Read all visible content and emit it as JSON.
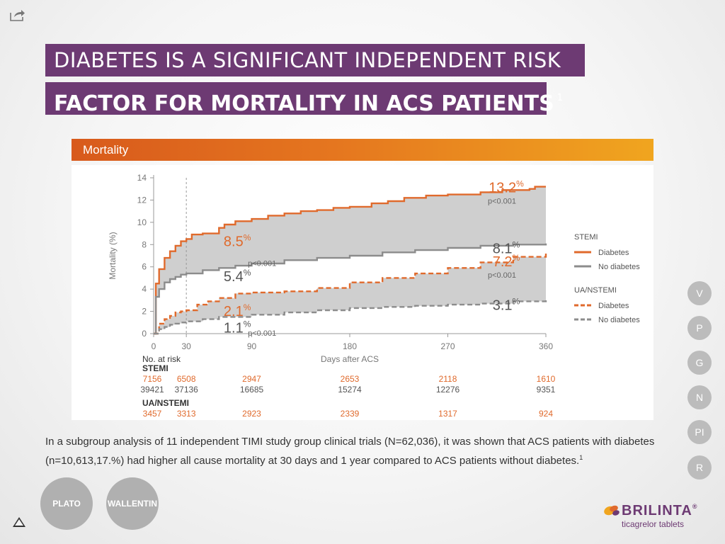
{
  "title_line1": "DIABETES IS A SIGNIFICANT INDEPENDENT RISK",
  "title_line2": "FACTOR FOR MORTALITY IN ACS PATIENTS",
  "title_ref": "1",
  "banner": "Mortality",
  "paragraph": "In a subgroup analysis of 11 independent TIMI study group clinical trials (N=62,036), it was shown that ACS patients with diabetes (n=10,613,17.%) had higher all cause mortality at 30 days and 1 year compared to ACS patients without diabetes.",
  "paragraph_ref": "1",
  "nav": {
    "side_buttons": [
      "V",
      "P",
      "G",
      "N",
      "PI",
      "R"
    ],
    "bottom_buttons": [
      "PLATO",
      "WALLENTIN"
    ]
  },
  "logo": {
    "name": "BRILINTA",
    "trademark": "®",
    "sub": "ticagrelor tablets"
  },
  "colors": {
    "diabetes": "#e06a2c",
    "no_diabetes": "#8c8c8c",
    "band": "#cfcfcf",
    "title_bg": "#6d3a73"
  },
  "chart_data": {
    "type": "line",
    "xlabel": "Days after ACS",
    "ylabel": "Mortality (%)",
    "xlim": [
      0,
      360
    ],
    "ylim": [
      0,
      14
    ],
    "xticks": [
      0,
      30,
      90,
      180,
      270,
      360
    ],
    "yticks": [
      0,
      2,
      4,
      6,
      8,
      10,
      12,
      14
    ],
    "reference_line_x": 30,
    "legend": {
      "groups": [
        {
          "title": "STEMI",
          "items": [
            {
              "label": "Diabetes",
              "style": "solid",
              "color": "#e06a2c"
            },
            {
              "label": "No diabetes",
              "style": "solid",
              "color": "#8c8c8c"
            }
          ]
        },
        {
          "title": "UA/NSTEMI",
          "items": [
            {
              "label": "Diabetes",
              "style": "dashed",
              "color": "#e06a2c"
            },
            {
              "label": "No diabetes",
              "style": "dashed",
              "color": "#8c8c8c"
            }
          ]
        }
      ]
    },
    "series": [
      {
        "group": "STEMI",
        "name": "Diabetes",
        "style": "solid",
        "color": "#e06a2c",
        "x": [
          0,
          2,
          5,
          10,
          15,
          20,
          25,
          30,
          35,
          45,
          60,
          65,
          75,
          90,
          105,
          120,
          135,
          150,
          165,
          180,
          200,
          215,
          230,
          250,
          270,
          300,
          320,
          345,
          350,
          360
        ],
        "y": [
          0,
          4.5,
          5.8,
          6.8,
          7.4,
          7.9,
          8.3,
          8.5,
          8.9,
          9.0,
          9.5,
          9.8,
          10.1,
          10.3,
          10.6,
          10.8,
          11.0,
          11.1,
          11.3,
          11.4,
          11.7,
          11.9,
          12.2,
          12.4,
          12.5,
          12.7,
          12.9,
          13.0,
          13.2,
          13.2
        ]
      },
      {
        "group": "STEMI",
        "name": "No diabetes",
        "style": "solid",
        "color": "#8c8c8c",
        "x": [
          0,
          2,
          5,
          10,
          15,
          20,
          25,
          30,
          45,
          60,
          75,
          90,
          120,
          150,
          180,
          210,
          240,
          270,
          300,
          330,
          360
        ],
        "y": [
          0,
          3.3,
          4.0,
          4.6,
          4.9,
          5.1,
          5.3,
          5.4,
          5.7,
          5.9,
          6.1,
          6.3,
          6.6,
          6.8,
          7.0,
          7.3,
          7.5,
          7.7,
          7.9,
          8.0,
          8.1
        ]
      },
      {
        "group": "UA/NSTEMI",
        "name": "Diabetes",
        "style": "dashed",
        "color": "#e06a2c",
        "x": [
          0,
          5,
          10,
          15,
          20,
          25,
          30,
          40,
          50,
          60,
          75,
          90,
          120,
          150,
          180,
          210,
          240,
          270,
          300,
          330,
          360
        ],
        "y": [
          0,
          0.9,
          1.3,
          1.6,
          1.9,
          2.0,
          2.1,
          2.6,
          2.9,
          3.2,
          3.6,
          3.7,
          3.8,
          4.1,
          4.6,
          5.0,
          5.4,
          5.9,
          6.4,
          6.9,
          7.2
        ]
      },
      {
        "group": "UA/NSTEMI",
        "name": "No diabetes",
        "style": "dashed",
        "color": "#8c8c8c",
        "x": [
          0,
          5,
          10,
          15,
          20,
          25,
          30,
          45,
          60,
          90,
          120,
          150,
          180,
          210,
          240,
          270,
          300,
          330,
          360
        ],
        "y": [
          0,
          0.4,
          0.6,
          0.8,
          0.9,
          1.0,
          1.1,
          1.3,
          1.5,
          1.7,
          1.9,
          2.1,
          2.3,
          2.4,
          2.5,
          2.6,
          2.7,
          2.9,
          3.1
        ]
      }
    ],
    "annotations": [
      {
        "text": "8.5",
        "unit": "%",
        "x": 30,
        "y": 8.5,
        "color": "#e06a2c",
        "p": "p<0.001"
      },
      {
        "text": "5.4",
        "unit": "%",
        "x": 30,
        "y": 5.4,
        "color": "#555555",
        "p": ""
      },
      {
        "text": "2.1",
        "unit": "%",
        "x": 30,
        "y": 2.1,
        "color": "#e06a2c",
        "p": "p<0.001"
      },
      {
        "text": "1.1",
        "unit": "%",
        "x": 30,
        "y": 1.1,
        "color": "#555555",
        "p": ""
      },
      {
        "text": "13.2",
        "unit": "%",
        "x": 360,
        "y": 13.2,
        "color": "#e06a2c",
        "p": "p<0.001"
      },
      {
        "text": "8.1",
        "unit": "%",
        "x": 360,
        "y": 8.1,
        "color": "#555555",
        "p": ""
      },
      {
        "text": "7.2",
        "unit": "%",
        "x": 360,
        "y": 7.2,
        "color": "#e06a2c",
        "p": "p<0.001"
      },
      {
        "text": "3.1",
        "unit": "%",
        "x": 360,
        "y": 3.1,
        "color": "#555555",
        "p": ""
      }
    ],
    "risk_table": {
      "header": "No. at risk",
      "days": [
        0,
        30,
        90,
        180,
        270,
        360
      ],
      "groups": [
        {
          "label": "STEMI",
          "rows": [
            {
              "name": "Diabetes",
              "color": "#e06a2c",
              "values": [
                "7156",
                "6508",
                "2947",
                "2653",
                "2118",
                "1610"
              ]
            },
            {
              "name": "No diabetes",
              "color": "#555555",
              "values": [
                "39421",
                "37136",
                "16685",
                "15274",
                "12276",
                "9351"
              ]
            }
          ]
        },
        {
          "label": "UA/NSTEMI",
          "rows": [
            {
              "name": "Diabetes",
              "color": "#e06a2c",
              "values": [
                "3457",
                "3313",
                "2923",
                "2339",
                "1317",
                "924"
              ]
            }
          ]
        }
      ]
    }
  }
}
